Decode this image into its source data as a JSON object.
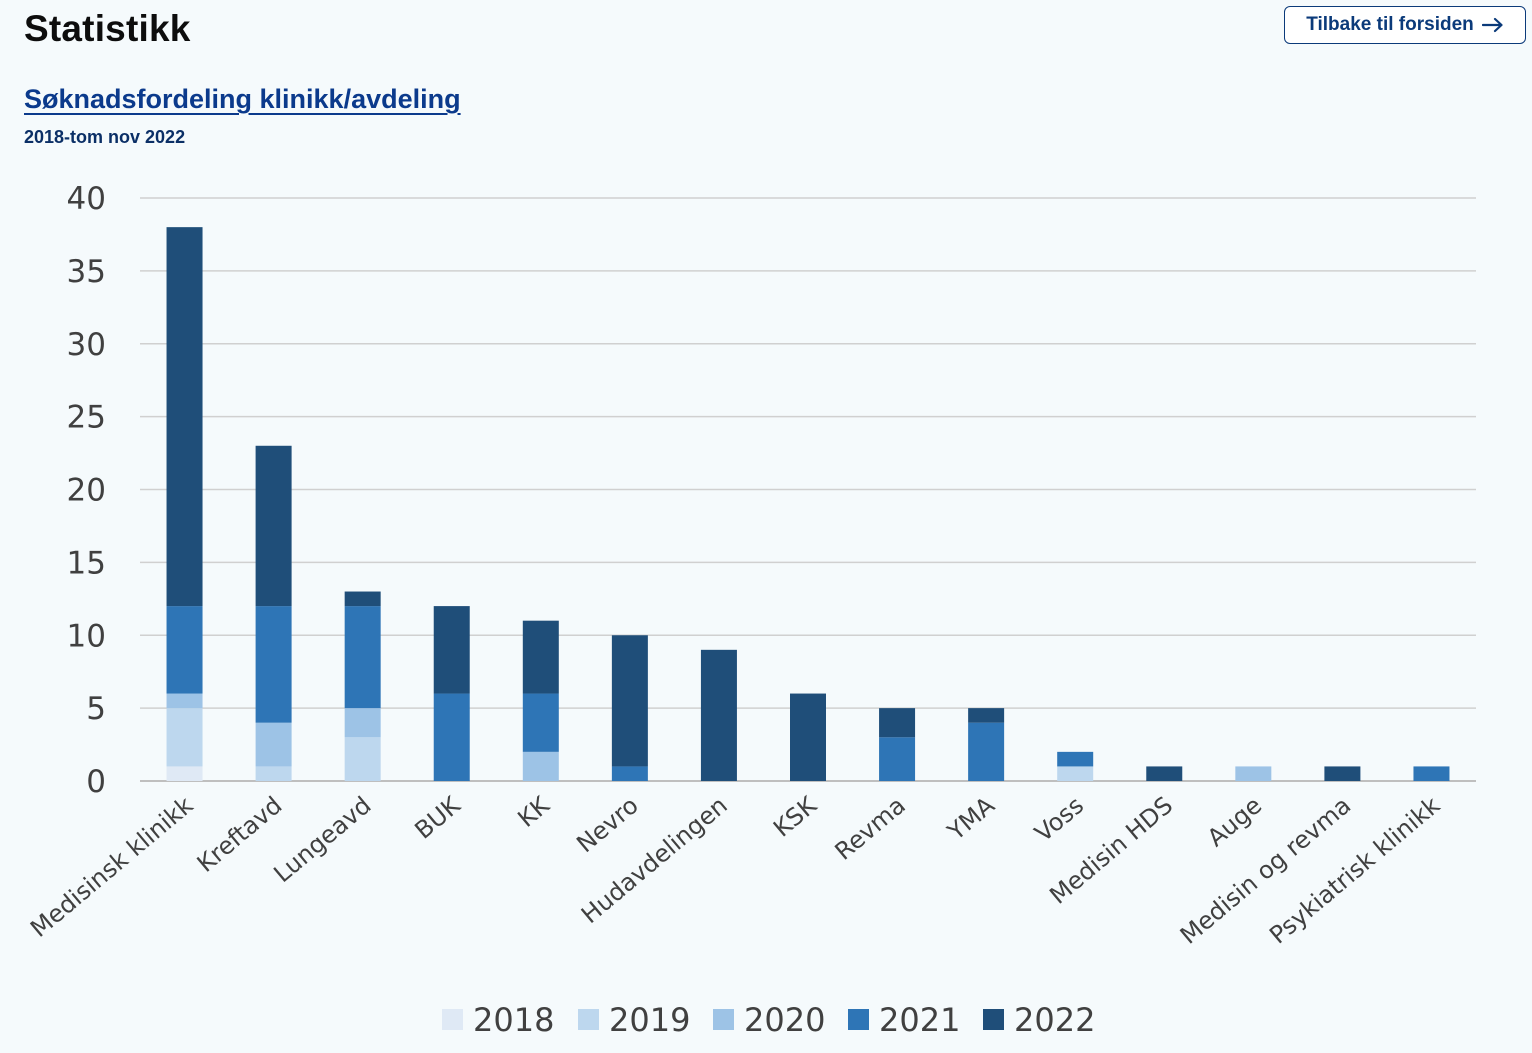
{
  "header": {
    "title": "Statistikk",
    "back_label": "Tilbake til forsiden",
    "back_icon": "arrow-right-icon"
  },
  "chart_data": {
    "type": "bar",
    "stacked": true,
    "title": "Søknadsfordeling klinikk/avdeling",
    "subtitle": "2018-tom nov 2022",
    "xlabel": "",
    "ylabel": "",
    "ylim": [
      0,
      40
    ],
    "yticks": [
      0,
      5,
      10,
      15,
      20,
      25,
      30,
      35,
      40
    ],
    "grid": true,
    "legend_position": "bottom",
    "categories": [
      "Medisinsk klinikk",
      "Kreftavd",
      "Lungeavd",
      "BUK",
      "KK",
      "Nevro",
      "Hudavdelingen",
      "KSK",
      "Revma",
      "YMA",
      "Voss",
      "Medisin HDS",
      "Auge",
      "Medisin og revma",
      "Psykiatrisk klinikk"
    ],
    "series": [
      {
        "name": "2018",
        "color": "#dfe9f5",
        "values": [
          1,
          0,
          0,
          0,
          0,
          0,
          0,
          0,
          0,
          0,
          0,
          0,
          0,
          0,
          0
        ]
      },
      {
        "name": "2019",
        "color": "#bdd7ee",
        "values": [
          4,
          1,
          3,
          0,
          0,
          0,
          0,
          0,
          0,
          0,
          1,
          0,
          0,
          0,
          0
        ]
      },
      {
        "name": "2020",
        "color": "#9dc3e6",
        "values": [
          1,
          3,
          2,
          0,
          2,
          0,
          0,
          0,
          0,
          0,
          0,
          0,
          1,
          0,
          0
        ]
      },
      {
        "name": "2021",
        "color": "#2e75b6",
        "values": [
          6,
          8,
          7,
          6,
          4,
          1,
          0,
          0,
          3,
          4,
          1,
          0,
          0,
          0,
          1
        ]
      },
      {
        "name": "2022",
        "color": "#1f4e79",
        "values": [
          26,
          11,
          1,
          6,
          5,
          9,
          9,
          6,
          2,
          1,
          0,
          1,
          0,
          1,
          0
        ]
      }
    ]
  }
}
